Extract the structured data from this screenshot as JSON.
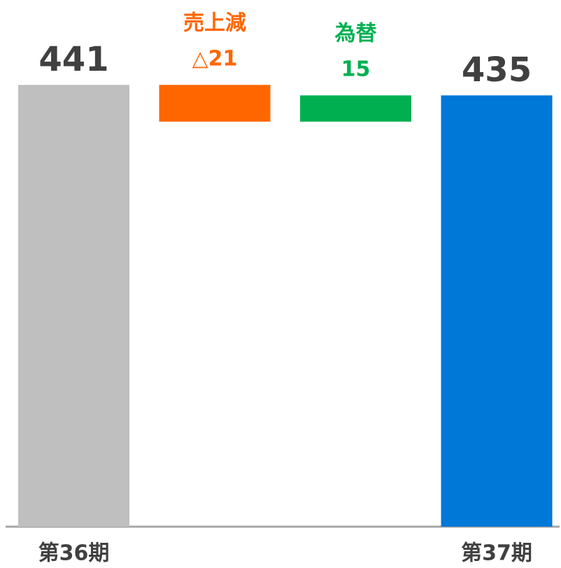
{
  "chart_data": {
    "type": "waterfall",
    "categories": [
      "第36期",
      "売上減",
      "為替",
      "第37期"
    ],
    "values": [
      441,
      -21,
      15,
      435
    ],
    "value_labels": [
      "441",
      "△21",
      "15",
      "435"
    ],
    "colors": [
      "#bfbfbf",
      "#ff6600",
      "#00b050",
      "#0078d7"
    ],
    "ylim": [
      188.6,
      479.5
    ]
  }
}
